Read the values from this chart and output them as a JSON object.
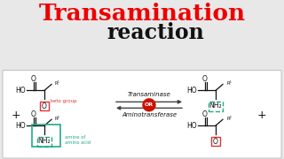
{
  "title_line1": "Transamination",
  "title_line2": "reaction",
  "title_color1": "#ee0000",
  "title_color2": "#111111",
  "title_fs1": 19,
  "title_fs2": 17,
  "bg_color": "#e8e8e8",
  "panel_color": "#ffffff",
  "enzyme_top": "Transaminase",
  "enzyme_bottom": "Aminotransferase",
  "or_label": "OR",
  "keto_label": "keto group",
  "amine_label1": "amine of",
  "amine_label2": "amino acid",
  "keto_box_color": "#dd3333",
  "teal_color": "#22aa88",
  "arrow_color": "#444444",
  "or_bg": "#cc1100",
  "or_text_color": "#ffffff",
  "struct_color": "#111111",
  "plus_color": "#111111"
}
